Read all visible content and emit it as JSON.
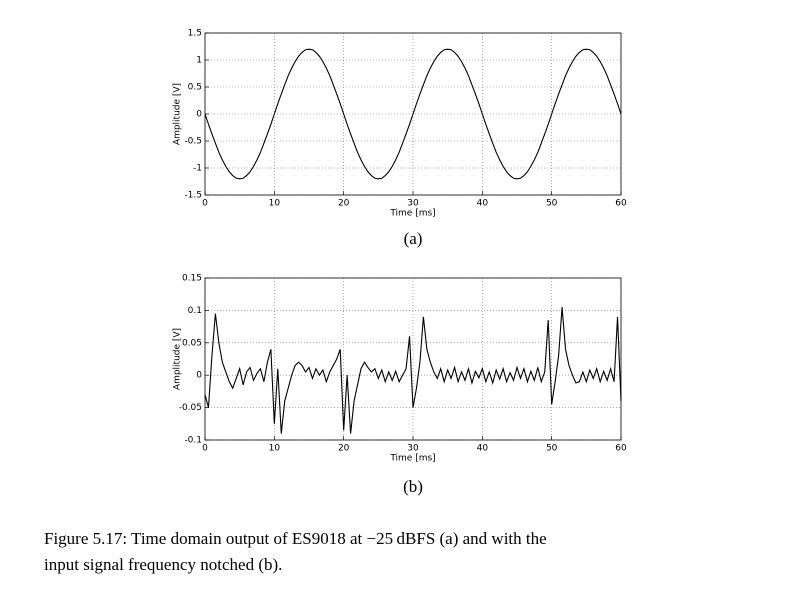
{
  "chart_data": [
    {
      "type": "line",
      "panel_label": "(a)",
      "xlabel": "Time [ms]",
      "ylabel": "Amplitude [V]",
      "grid": true,
      "xlim": [
        0,
        60
      ],
      "ylim": [
        -1.5,
        1.5
      ],
      "xticks": [
        0,
        10,
        20,
        30,
        40,
        50,
        60
      ],
      "yticks": [
        -1.5,
        -1,
        -0.5,
        0,
        0.5,
        1,
        1.5
      ],
      "x": [
        0,
        0.5,
        1,
        1.5,
        2,
        2.5,
        3,
        3.5,
        4,
        4.5,
        5,
        5.5,
        6,
        6.5,
        7,
        7.5,
        8,
        8.5,
        9,
        9.5,
        10,
        10.5,
        11,
        11.5,
        12,
        12.5,
        13,
        13.5,
        14,
        14.5,
        15,
        15.5,
        16,
        16.5,
        17,
        17.5,
        18,
        18.5,
        19,
        19.5,
        20,
        20.5,
        21,
        21.5,
        22,
        22.5,
        23,
        23.5,
        24,
        24.5,
        25,
        25.5,
        26,
        26.5,
        27,
        27.5,
        28,
        28.5,
        29,
        29.5,
        30,
        30.5,
        31,
        31.5,
        32,
        32.5,
        33,
        33.5,
        34,
        34.5,
        35,
        35.5,
        36,
        36.5,
        37,
        37.5,
        38,
        38.5,
        39,
        39.5,
        40,
        40.5,
        41,
        41.5,
        42,
        42.5,
        43,
        43.5,
        44,
        44.5,
        45,
        45.5,
        46,
        46.5,
        47,
        47.5,
        48,
        48.5,
        49,
        49.5,
        50,
        50.5,
        51,
        51.5,
        52,
        52.5,
        53,
        53.5,
        54,
        54.5,
        55,
        55.5,
        56,
        56.5,
        57,
        57.5,
        58,
        58.5,
        59,
        59.5,
        60
      ],
      "series": [
        {
          "color": "#000000",
          "values": [
            0,
            -0.19,
            -0.37,
            -0.54,
            -0.71,
            -0.85,
            -0.97,
            -1.07,
            -1.14,
            -1.19,
            -1.2,
            -1.19,
            -1.14,
            -1.07,
            -0.97,
            -0.85,
            -0.71,
            -0.54,
            -0.37,
            -0.19,
            0,
            0.19,
            0.37,
            0.54,
            0.71,
            0.85,
            0.97,
            1.07,
            1.14,
            1.19,
            1.2,
            1.19,
            1.14,
            1.07,
            0.97,
            0.85,
            0.71,
            0.54,
            0.37,
            0.19,
            0,
            -0.19,
            -0.37,
            -0.54,
            -0.71,
            -0.85,
            -0.97,
            -1.07,
            -1.14,
            -1.19,
            -1.2,
            -1.19,
            -1.14,
            -1.07,
            -0.97,
            -0.85,
            -0.71,
            -0.54,
            -0.37,
            -0.19,
            0,
            0.19,
            0.37,
            0.54,
            0.71,
            0.85,
            0.97,
            1.07,
            1.14,
            1.19,
            1.2,
            1.19,
            1.14,
            1.07,
            0.97,
            0.85,
            0.71,
            0.54,
            0.37,
            0.19,
            0,
            -0.19,
            -0.37,
            -0.54,
            -0.71,
            -0.85,
            -0.97,
            -1.07,
            -1.14,
            -1.19,
            -1.2,
            -1.19,
            -1.14,
            -1.07,
            -0.97,
            -0.85,
            -0.71,
            -0.54,
            -0.37,
            -0.19,
            0,
            0.19,
            0.37,
            0.54,
            0.71,
            0.85,
            0.97,
            1.07,
            1.14,
            1.19,
            1.2,
            1.19,
            1.14,
            1.07,
            0.97,
            0.85,
            0.71,
            0.54,
            0.37,
            0.19,
            0
          ]
        }
      ]
    },
    {
      "type": "line",
      "panel_label": "(b)",
      "xlabel": "Time [ms]",
      "ylabel": "Amplitude [V]",
      "grid": true,
      "xlim": [
        0,
        60
      ],
      "ylim": [
        -0.1,
        0.15
      ],
      "xticks": [
        0,
        10,
        20,
        30,
        40,
        50,
        60
      ],
      "yticks": [
        -0.1,
        -0.05,
        0,
        0.05,
        0.1,
        0.15
      ],
      "x": [
        0,
        0.5,
        1,
        1.5,
        2,
        2.5,
        3,
        3.5,
        4,
        4.5,
        5,
        5.5,
        6,
        6.5,
        7,
        7.5,
        8,
        8.5,
        9,
        9.5,
        10,
        10.5,
        11,
        11.5,
        12,
        12.5,
        13,
        13.5,
        14,
        14.5,
        15,
        15.5,
        16,
        16.5,
        17,
        17.5,
        18,
        18.5,
        19,
        19.5,
        20,
        20.5,
        21,
        21.5,
        22,
        22.5,
        23,
        23.5,
        24,
        24.5,
        25,
        25.5,
        26,
        26.5,
        27,
        27.5,
        28,
        28.5,
        29,
        29.5,
        30,
        30.5,
        31,
        31.5,
        32,
        32.5,
        33,
        33.5,
        34,
        34.5,
        35,
        35.5,
        36,
        36.5,
        37,
        37.5,
        38,
        38.5,
        39,
        39.5,
        40,
        40.5,
        41,
        41.5,
        42,
        42.5,
        43,
        43.5,
        44,
        44.5,
        45,
        45.5,
        46,
        46.5,
        47,
        47.5,
        48,
        48.5,
        49,
        49.5,
        50,
        50.5,
        51,
        51.5,
        52,
        52.5,
        53,
        53.5,
        54,
        54.5,
        55,
        55.5,
        56,
        56.5,
        57,
        57.5,
        58,
        58.5,
        59,
        59.5,
        60
      ],
      "series": [
        {
          "color": "#000000",
          "values": [
            -0.03,
            -0.05,
            0.03,
            0.095,
            0.05,
            0.02,
            0.005,
            -0.01,
            -0.02,
            -0.005,
            0.01,
            -0.015,
            0.005,
            0.012,
            -0.008,
            0.003,
            0.01,
            -0.01,
            0.02,
            0.04,
            -0.075,
            0.01,
            -0.09,
            -0.04,
            -0.02,
            0,
            0.015,
            0.02,
            0.015,
            0.005,
            0.012,
            -0.005,
            0.01,
            0,
            0.008,
            -0.01,
            0.005,
            0.015,
            0.025,
            0.04,
            -0.085,
            0,
            -0.09,
            -0.04,
            -0.015,
            0.01,
            0.02,
            0.012,
            0.005,
            0.01,
            -0.005,
            0.008,
            -0.01,
            0.005,
            -0.008,
            0.006,
            -0.01,
            0,
            0.01,
            0.06,
            -0.05,
            -0.02,
            0.02,
            0.09,
            0.04,
            0.02,
            0.005,
            -0.005,
            0.01,
            -0.01,
            0.008,
            -0.005,
            0.012,
            -0.01,
            0.005,
            -0.008,
            0.01,
            -0.012,
            0.006,
            -0.004,
            0.01,
            -0.01,
            0.005,
            -0.012,
            0.008,
            -0.006,
            0.01,
            -0.01,
            0.004,
            -0.008,
            0.012,
            -0.005,
            0.01,
            -0.01,
            0.006,
            -0.008,
            0.012,
            -0.01,
            0.005,
            0.085,
            -0.045,
            -0.01,
            0.03,
            0.105,
            0.04,
            0.015,
            0,
            -0.012,
            -0.01,
            0.005,
            -0.01,
            0.008,
            -0.005,
            0.01,
            -0.01,
            0.006,
            -0.008,
            0.01,
            -0.01,
            0.09,
            -0.04
          ]
        }
      ]
    }
  ],
  "caption": [
    "Figure 5.17: Time domain output of ES9018 at −25 dBFS (a) and with the",
    "input signal frequency notched (b)."
  ]
}
